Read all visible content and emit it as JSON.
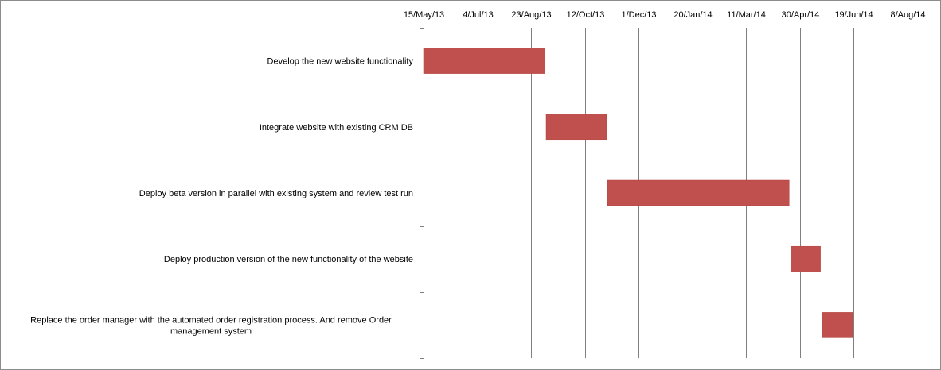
{
  "chart_data": {
    "type": "gantt",
    "title": "",
    "xlabel": "",
    "ylabel": "",
    "x_axis": {
      "position": "top",
      "scale": "date",
      "min": "2013-05-15",
      "max": "2014-08-08",
      "tick_labels": [
        "15/May/13",
        "4/Jul/13",
        "23/Aug/13",
        "12/Oct/13",
        "1/Dec/13",
        "20/Jan/14",
        "11/Mar/14",
        "30/Apr/14",
        "19/Jun/14",
        "8/Aug/14"
      ],
      "tick_dates": [
        "2013-05-15",
        "2013-07-04",
        "2013-08-23",
        "2013-10-12",
        "2013-12-01",
        "2014-01-20",
        "2014-03-11",
        "2014-04-30",
        "2014-06-19",
        "2014-08-08"
      ]
    },
    "grid": true,
    "legend": "none",
    "bar_color": "#C0504D",
    "tasks": [
      {
        "lines": [
          "Develop the new website functionality"
        ],
        "start": "2013-05-15",
        "end": "2013-09-05"
      },
      {
        "lines": [
          "Integrate website with  existing CRM DB"
        ],
        "start": "2013-09-06",
        "end": "2013-11-01"
      },
      {
        "lines": [
          "Deploy beta version in parallel with  existing system and review test run"
        ],
        "start": "2013-11-02",
        "end": "2014-04-20"
      },
      {
        "lines": [
          "Deploy production version of the new functionality of the website"
        ],
        "start": "2014-04-22",
        "end": "2014-05-19"
      },
      {
        "lines": [
          "Replace the order manager with the automated  order registration process. And remove Order",
          "management system"
        ],
        "start": "2014-05-21",
        "end": "2014-06-18"
      }
    ]
  }
}
